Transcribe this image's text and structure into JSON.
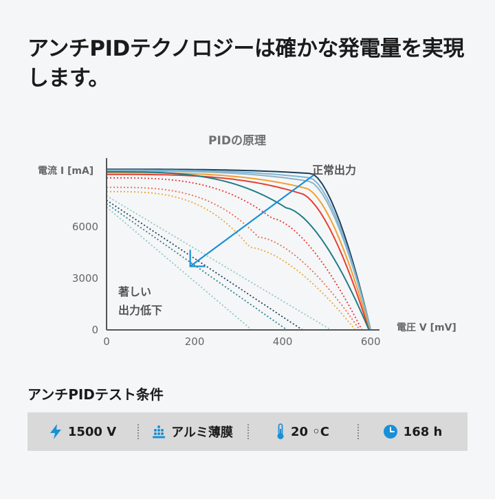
{
  "headline": "アンチPIDテクノロジーは確かな発電量を実現します。",
  "chart_data": {
    "type": "line",
    "title": "PIDの原理",
    "ylabel": "電流 I [mA]",
    "xlabel": "電圧 V [mV]",
    "xlim": [
      0,
      620
    ],
    "ylim": [
      0,
      10000
    ],
    "x_ticks": [
      "0",
      "200",
      "400",
      "600"
    ],
    "y_ticks": [
      "0",
      "3000",
      "6000"
    ],
    "y_tick_values": [
      0,
      3000,
      6000
    ],
    "annotation_normal": "正常出力",
    "annotation_degraded": [
      "著しい",
      "出力低下"
    ],
    "legend": "none",
    "grid": false,
    "series": [
      {
        "style": "solid",
        "color": "#1c3d5a",
        "isc": 9350,
        "vmp": 465,
        "imp": 9100,
        "voc": 600
      },
      {
        "style": "solid",
        "color": "#8fb3c4",
        "isc": 9250,
        "vmp": 460,
        "imp": 8650,
        "voc": 600
      },
      {
        "style": "solid",
        "color": "#f0a030",
        "isc": 9150,
        "vmp": 452,
        "imp": 8250,
        "voc": 598
      },
      {
        "style": "solid",
        "color": "#7ab6d8",
        "isc": 9300,
        "vmp": 462,
        "imp": 8850,
        "voc": 600
      },
      {
        "style": "solid",
        "color": "#e63e30",
        "isc": 9050,
        "vmp": 440,
        "imp": 7950,
        "voc": 596
      },
      {
        "style": "solid",
        "color": "#1e7c86",
        "isc": 9200,
        "vmp": 408,
        "imp": 7100,
        "voc": 596
      },
      {
        "style": "dotted",
        "color": "#e8322a",
        "isc": 8850,
        "vmp": 375,
        "imp": 6500,
        "voc": 580
      },
      {
        "style": "dotted",
        "color": "#e86a4a",
        "isc": 8300,
        "vmp": 345,
        "imp": 5400,
        "voc": 575
      },
      {
        "style": "dotted",
        "color": "#e8a830",
        "isc": 8050,
        "vmp": 325,
        "imp": 4800,
        "voc": 565
      },
      {
        "style": "dotted",
        "color": "#1c3d5a",
        "isc": 7550,
        "vmp": 0,
        "imp": 0,
        "voc": 445
      },
      {
        "style": "dotted",
        "color": "#2a7f8a",
        "isc": 7350,
        "vmp": 0,
        "imp": 0,
        "voc": 410
      },
      {
        "style": "dotted",
        "color": "#8cc8bc",
        "isc": 7800,
        "vmp": 0,
        "imp": 0,
        "voc": 510
      },
      {
        "style": "dotted",
        "color": "#8cc8bc",
        "isc": 7150,
        "vmp": 0,
        "imp": 0,
        "voc": 330
      }
    ],
    "arrow": {
      "from": {
        "x": 470,
        "y": 9000
      },
      "to": {
        "x": 190,
        "y": 3700
      },
      "color": "#1a8fd6"
    }
  },
  "conditions": {
    "title": "アンチPIDテスト条件",
    "items": [
      {
        "icon": "lightning-icon",
        "label": "1500 V"
      },
      {
        "icon": "film-dots-icon",
        "label": "アルミ薄膜"
      },
      {
        "icon": "thermometer-icon",
        "label": "20 ◦C"
      },
      {
        "icon": "clock-icon",
        "label": "168 h"
      }
    ],
    "icon_color": "#1a8fd6"
  }
}
